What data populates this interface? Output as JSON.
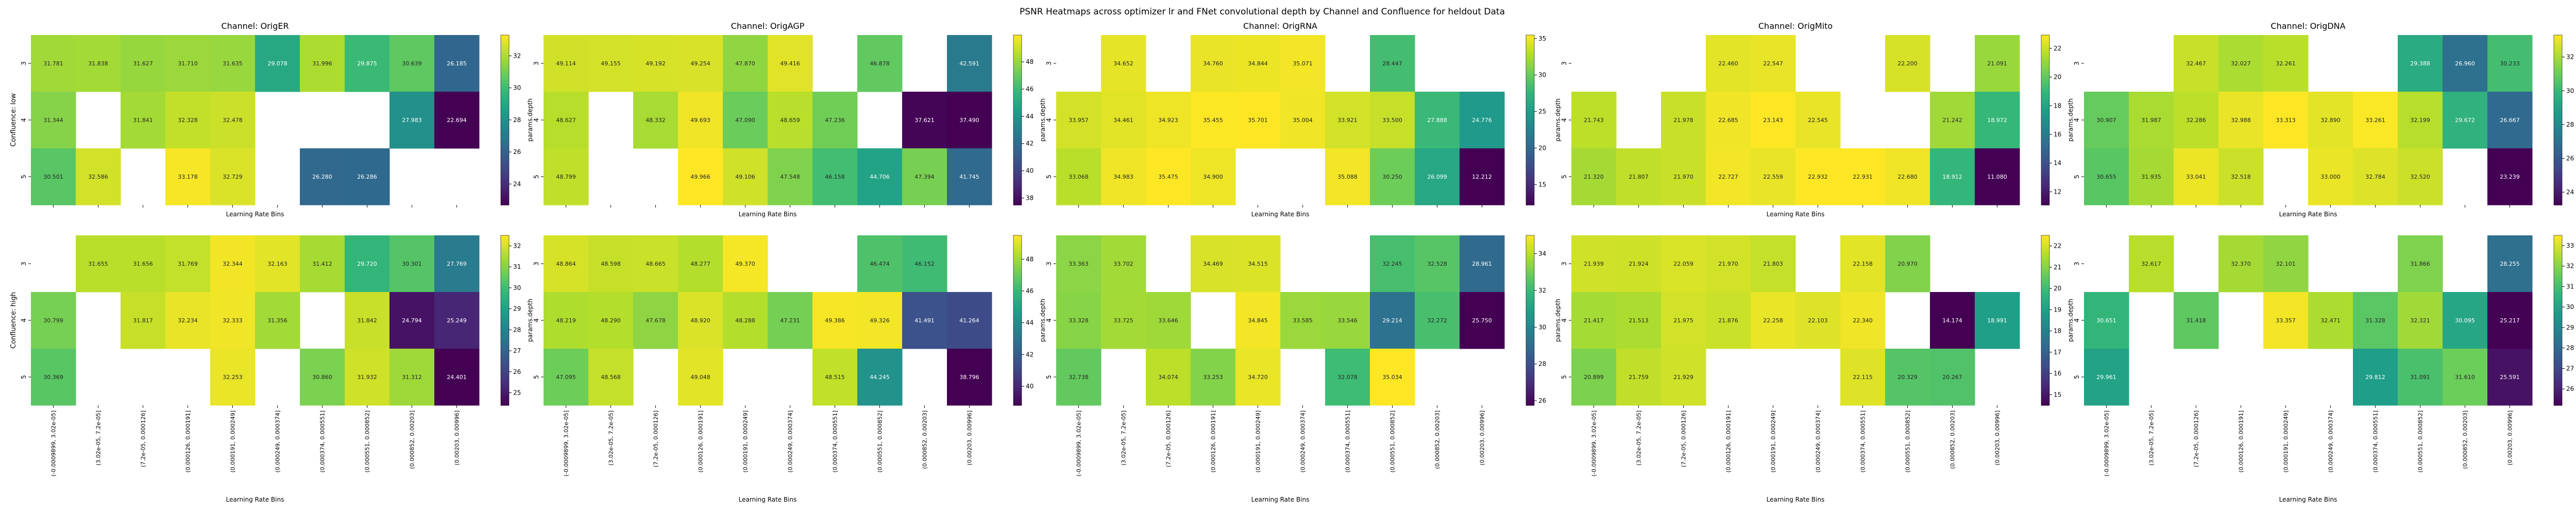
{
  "figure": {
    "suptitle": "PSNR Heatmaps across optimizer lr and FNet convolutional depth by Channel and Confluence for heldout Data"
  },
  "chart_data": {
    "type": "heatmap",
    "colormap": "viridis",
    "xlabel": "Learning Rate Bins",
    "ylabel": "params.depth",
    "x_categories": [
      "(-0.0009899, 3.02e-05]",
      "(3.02e-05, 7.2e-05]",
      "(7.2e-05, 0.000126]",
      "(0.000126, 0.000191]",
      "(0.000191, 0.000249]",
      "(0.000249, 0.000374]",
      "(0.000374, 0.000551]",
      "(0.000551, 0.000852]",
      "(0.000852, 0.00203]",
      "(0.00203, 0.00996]"
    ],
    "y_categories": [
      "3",
      "4",
      "5"
    ],
    "row_labels": [
      "Confluence: low",
      "Confluence: high"
    ],
    "panels": [
      {
        "row": 0,
        "col": 0,
        "title": "Channel: OrigER",
        "row_label": "Confluence: low",
        "ylabel": "",
        "colorbar_ticks": [
          24,
          26,
          28,
          30,
          32
        ],
        "vmin": 22.69,
        "vmax": 33.3,
        "values": [
          [
            31.781,
            31.838,
            31.627,
            31.71,
            31.635,
            29.078,
            31.996,
            29.875,
            30.639,
            26.185
          ],
          [
            31.344,
            null,
            31.841,
            32.328,
            32.478,
            null,
            null,
            null,
            27.983,
            22.694
          ],
          [
            30.501,
            32.586,
            null,
            33.178,
            32.729,
            null,
            26.28,
            26.286,
            null,
            null
          ]
        ]
      },
      {
        "row": 0,
        "col": 1,
        "title": "Channel: OrigAGP",
        "row_label": "",
        "ylabel": "params.depth",
        "colorbar_ticks": [
          38,
          40,
          42,
          44,
          46,
          48
        ],
        "vmin": 37.49,
        "vmax": 49.97,
        "values": [
          [
            49.114,
            49.155,
            49.192,
            49.254,
            47.87,
            49.416,
            null,
            46.878,
            null,
            42.591
          ],
          [
            48.627,
            null,
            48.332,
            49.693,
            47.09,
            48.659,
            47.236,
            null,
            37.621,
            37.49
          ],
          [
            48.799,
            null,
            null,
            49.966,
            49.106,
            47.548,
            46.158,
            44.706,
            47.394,
            41.745
          ]
        ]
      },
      {
        "row": 0,
        "col": 2,
        "title": "Channel: OrigRNA",
        "row_label": "",
        "ylabel": "params.depth",
        "colorbar_ticks": [
          15,
          20,
          25,
          30,
          35
        ],
        "vmin": 12.21,
        "vmax": 35.48,
        "values": [
          [
            null,
            34.652,
            null,
            34.76,
            34.844,
            35.071,
            null,
            28.447,
            null,
            null
          ],
          [
            33.957,
            34.461,
            34.923,
            35.455,
            35.701,
            35.004,
            33.921,
            33.5,
            27.888,
            24.776
          ],
          [
            33.068,
            34.983,
            35.475,
            34.9,
            null,
            null,
            35.088,
            30.25,
            26.099,
            12.212
          ]
        ]
      },
      {
        "row": 0,
        "col": 3,
        "title": "Channel: OrigMito",
        "row_label": "",
        "ylabel": "params.depth",
        "colorbar_ticks": [
          12,
          14,
          16,
          18,
          20,
          22
        ],
        "vmin": 11.08,
        "vmax": 22.93,
        "values": [
          [
            null,
            null,
            null,
            22.46,
            22.547,
            null,
            null,
            22.2,
            null,
            21.091
          ],
          [
            21.743,
            null,
            21.978,
            22.685,
            23.143,
            22.545,
            null,
            null,
            21.242,
            18.972
          ],
          [
            21.32,
            21.807,
            21.97,
            22.727,
            22.559,
            22.932,
            22.931,
            22.68,
            18.912,
            11.08
          ]
        ]
      },
      {
        "row": 0,
        "col": 4,
        "title": "Channel: OrigDNA",
        "row_label": "",
        "ylabel": "params.depth",
        "colorbar_ticks": [
          24,
          26,
          28,
          30,
          32
        ],
        "vmin": 23.24,
        "vmax": 33.3,
        "values": [
          [
            null,
            null,
            32.467,
            32.027,
            32.261,
            null,
            null,
            29.388,
            26.96,
            30.233
          ],
          [
            30.907,
            31.987,
            32.286,
            32.988,
            33.313,
            32.89,
            33.261,
            32.199,
            29.672,
            26.667
          ],
          [
            30.655,
            31.935,
            33.041,
            32.518,
            null,
            33.0,
            32.784,
            32.52,
            null,
            23.239
          ]
        ]
      },
      {
        "row": 1,
        "col": 0,
        "title": "",
        "row_label": "Confluence: high",
        "ylabel": "",
        "colorbar_ticks": [
          25,
          26,
          27,
          28,
          29,
          30,
          31,
          32
        ],
        "vmin": 24.4,
        "vmax": 32.5,
        "values": [
          [
            null,
            31.655,
            31.656,
            31.769,
            32.344,
            32.163,
            31.412,
            29.72,
            30.301,
            27.769
          ],
          [
            30.799,
            null,
            31.817,
            32.234,
            32.333,
            31.356,
            null,
            31.842,
            24.794,
            25.249
          ],
          [
            30.369,
            null,
            null,
            null,
            32.253,
            null,
            30.86,
            31.932,
            31.312,
            24.401
          ]
        ]
      },
      {
        "row": 1,
        "col": 1,
        "title": "",
        "row_label": "",
        "ylabel": "params.depth",
        "colorbar_ticks": [
          40,
          42,
          44,
          46,
          48
        ],
        "vmin": 38.8,
        "vmax": 49.5,
        "values": [
          [
            48.864,
            48.598,
            48.665,
            48.277,
            49.37,
            null,
            null,
            46.474,
            46.152,
            null
          ],
          [
            48.219,
            48.29,
            47.678,
            48.92,
            48.288,
            47.231,
            49.386,
            49.326,
            41.491,
            41.264
          ],
          [
            47.095,
            48.568,
            null,
            49.048,
            null,
            null,
            48.515,
            44.245,
            null,
            38.796
          ]
        ]
      },
      {
        "row": 1,
        "col": 2,
        "title": "",
        "row_label": "",
        "ylabel": "params.depth",
        "colorbar_ticks": [
          26,
          28,
          30,
          32,
          34
        ],
        "vmin": 25.75,
        "vmax": 35.0,
        "values": [
          [
            33.363,
            33.702,
            null,
            34.469,
            34.515,
            null,
            null,
            32.245,
            32.528,
            28.961
          ],
          [
            33.328,
            33.725,
            33.646,
            null,
            34.845,
            33.585,
            33.546,
            29.214,
            32.272,
            25.75
          ],
          [
            32.738,
            null,
            34.074,
            33.253,
            34.72,
            null,
            32.078,
            35.034,
            null,
            null
          ]
        ]
      },
      {
        "row": 1,
        "col": 3,
        "title": "",
        "row_label": "",
        "ylabel": "params.depth",
        "colorbar_ticks": [
          15,
          16,
          17,
          18,
          19,
          20,
          21,
          22
        ],
        "vmin": 14.5,
        "vmax": 22.5,
        "values": [
          [
            21.939,
            21.924,
            22.059,
            21.97,
            21.803,
            null,
            22.158,
            20.97,
            null,
            null
          ],
          [
            21.417,
            21.513,
            21.975,
            21.876,
            22.258,
            22.103,
            22.34,
            null,
            14.174,
            18.991
          ],
          [
            20.899,
            21.759,
            21.929,
            null,
            null,
            null,
            22.115,
            20.329,
            20.267,
            null
          ]
        ]
      },
      {
        "row": 1,
        "col": 4,
        "title": "",
        "row_label": "",
        "ylabel": "params.depth",
        "colorbar_ticks": [
          26,
          27,
          28,
          29,
          30,
          31,
          32,
          33
        ],
        "vmin": 25.2,
        "vmax": 33.5,
        "values": [
          [
            null,
            32.617,
            null,
            32.37,
            32.101,
            null,
            null,
            31.866,
            null,
            28.255
          ],
          [
            30.651,
            null,
            31.418,
            null,
            33.357,
            32.471,
            31.328,
            32.321,
            30.095,
            25.217
          ],
          [
            29.961,
            null,
            null,
            null,
            null,
            null,
            29.812,
            31.091,
            31.61,
            25.591
          ]
        ]
      }
    ]
  }
}
